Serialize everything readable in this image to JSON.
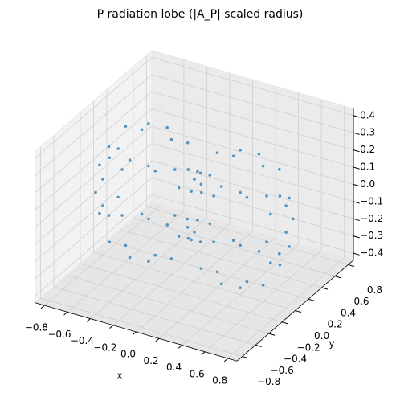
{
  "chart_data": {
    "type": "scatter3d",
    "title": "P radiation lobe (|A_P| scaled radius)",
    "xlabel": "x",
    "ylabel": "y",
    "color": "#1f77b4",
    "xlim": [
      -0.88,
      0.88
    ],
    "ylim": [
      -0.88,
      0.88
    ],
    "zlim": [
      -0.44,
      0.44
    ],
    "xticks": [
      {
        "value": -0.8,
        "label": "−0.8"
      },
      {
        "value": -0.6,
        "label": "−0.6"
      },
      {
        "value": -0.4,
        "label": "−0.4"
      },
      {
        "value": -0.2,
        "label": "−0.2"
      },
      {
        "value": 0,
        "label": "0.0"
      },
      0.2,
      0.4,
      0.6,
      0.8
    ],
    "yticks": [
      {
        "value": -0.8,
        "label": "−0.8"
      },
      {
        "value": -0.6,
        "label": "−0.6"
      },
      {
        "value": -0.4,
        "label": "−0.4"
      },
      {
        "value": -0.2,
        "label": "−0.2"
      },
      {
        "value": 0,
        "label": "0.0"
      },
      0.2,
      0.4,
      0.6,
      0.8
    ],
    "zticks": [
      {
        "value": -0.4,
        "label": "−0.4"
      },
      {
        "value": -0.3,
        "label": "−0.3"
      },
      {
        "value": -0.2,
        "label": "−0.2"
      },
      {
        "value": -0.1,
        "label": "−0.1"
      },
      {
        "value": 0,
        "label": "0.0"
      },
      0.1,
      0.2,
      0.3,
      0.4
    ],
    "x": [
      0.746,
      0.746,
      0.746,
      0.746,
      0.746,
      0.746,
      0.746,
      0.746,
      0.6,
      0.6,
      0.6,
      0.6,
      0.6,
      0.6,
      0.6,
      0.6,
      0.4,
      0.4,
      0.4,
      0.4,
      0.4,
      0.4,
      0.4,
      0.4,
      0.2,
      0.2,
      0.2,
      0.2,
      0.2,
      0.2,
      0.2,
      0.2,
      0.054,
      0.054,
      0.054,
      0.054,
      0.054,
      0.054,
      0.054,
      0.054,
      0.8,
      -0.746,
      -0.746,
      -0.746,
      -0.746,
      -0.746,
      -0.746,
      -0.746,
      -0.746,
      -0.6,
      -0.6,
      -0.6,
      -0.6,
      -0.6,
      -0.6,
      -0.6,
      -0.6,
      -0.4,
      -0.4,
      -0.4,
      -0.4,
      -0.4,
      -0.4,
      -0.4,
      -0.4,
      -0.2,
      -0.2,
      -0.2,
      -0.2,
      -0.2,
      -0.2,
      -0.2,
      -0.2,
      -0.054,
      -0.054,
      -0.054,
      -0.054,
      -0.054,
      -0.054,
      -0.054,
      -0.054,
      -0.8
    ],
    "y": [
      0.2,
      0.141,
      0,
      -0.141,
      -0.2,
      -0.141,
      0,
      0.141,
      0.346,
      0.245,
      0,
      -0.245,
      -0.346,
      -0.245,
      0,
      0.245,
      0.4,
      0.283,
      0,
      -0.283,
      -0.4,
      -0.283,
      0,
      0.283,
      0.346,
      0.245,
      0,
      -0.245,
      -0.346,
      -0.245,
      0,
      0.245,
      0.2,
      0.141,
      0,
      -0.141,
      -0.2,
      -0.141,
      0,
      0.141,
      0,
      0.2,
      0.141,
      0,
      -0.141,
      -0.2,
      -0.141,
      0,
      0.141,
      0.346,
      0.245,
      0,
      -0.245,
      -0.346,
      -0.245,
      0,
      0.245,
      0.4,
      0.283,
      0,
      -0.283,
      -0.4,
      -0.283,
      0,
      0.283,
      0.346,
      0.245,
      0,
      -0.245,
      -0.346,
      -0.245,
      0,
      0.245,
      0.2,
      0.141,
      0,
      -0.141,
      -0.2,
      -0.141,
      0,
      0.141,
      0
    ],
    "z": [
      0,
      0.141,
      0.2,
      0.141,
      0,
      -0.141,
      -0.2,
      -0.141,
      0,
      0.245,
      0.346,
      0.245,
      0,
      -0.245,
      -0.346,
      -0.245,
      0,
      0.283,
      0.4,
      0.283,
      0,
      -0.283,
      -0.4,
      -0.283,
      0,
      0.245,
      0.346,
      0.245,
      0,
      -0.245,
      -0.346,
      -0.245,
      0,
      0.141,
      0.2,
      0.141,
      0,
      -0.141,
      -0.2,
      -0.141,
      0,
      0,
      0.141,
      0.2,
      0.141,
      0,
      -0.141,
      -0.2,
      -0.141,
      0,
      0.245,
      0.346,
      0.245,
      0,
      -0.245,
      -0.346,
      -0.245,
      0,
      0.283,
      0.4,
      0.283,
      0,
      -0.283,
      -0.4,
      -0.283,
      0,
      0.245,
      0.346,
      0.245,
      0,
      -0.245,
      -0.346,
      -0.245,
      0,
      0.141,
      0.2,
      0.141,
      0,
      -0.141,
      -0.2,
      -0.141,
      0
    ]
  }
}
